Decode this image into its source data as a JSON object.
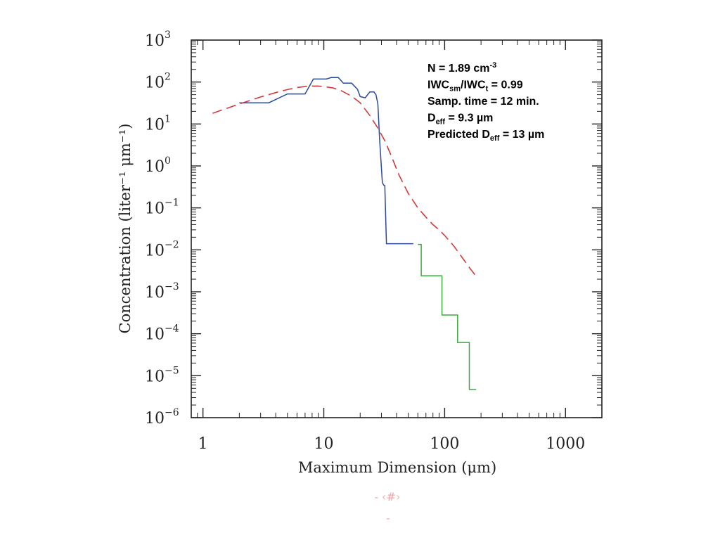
{
  "chart_data": {
    "type": "line",
    "xscale": "log",
    "yscale": "log",
    "xlim": [
      0.8,
      2000
    ],
    "ylim": [
      1e-06,
      1000
    ],
    "grid": false,
    "xlabel": "Maximum Dimension (μm)",
    "ylabel": "Concentration (liter⁻¹ μm⁻¹)",
    "x_ticks": [
      {
        "value": 1,
        "label": "1"
      },
      {
        "value": 10,
        "label": "10"
      },
      {
        "value": 100,
        "label": "100"
      },
      {
        "value": 1000,
        "label": "1000"
      }
    ],
    "y_ticks": [
      {
        "value": 1e-06,
        "base": "10",
        "exp": "−6"
      },
      {
        "value": 1e-05,
        "base": "10",
        "exp": "−5"
      },
      {
        "value": 0.0001,
        "base": "10",
        "exp": "−4"
      },
      {
        "value": 0.001,
        "base": "10",
        "exp": "−3"
      },
      {
        "value": 0.01,
        "base": "10",
        "exp": "−2"
      },
      {
        "value": 0.1,
        "base": "10",
        "exp": "−1"
      },
      {
        "value": 1,
        "base": "10",
        "exp": "0"
      },
      {
        "value": 10,
        "base": "10",
        "exp": "1"
      },
      {
        "value": 100,
        "base": "10",
        "exp": "2"
      },
      {
        "value": 1000,
        "base": "10",
        "exp": "3"
      }
    ],
    "series": [
      {
        "color": "#2a4aa0",
        "style": "solid",
        "points": [
          [
            2,
            32
          ],
          [
            3.5,
            32
          ],
          [
            5,
            52
          ],
          [
            7,
            52
          ],
          [
            8.2,
            118
          ],
          [
            10.5,
            118
          ],
          [
            11.5,
            128
          ],
          [
            13.2,
            128
          ],
          [
            14.5,
            94
          ],
          [
            17,
            94
          ],
          [
            19,
            67
          ],
          [
            20,
            45
          ],
          [
            22,
            42
          ],
          [
            24,
            58
          ],
          [
            26,
            58
          ],
          [
            27,
            50
          ],
          [
            28,
            30
          ],
          [
            29,
            4
          ],
          [
            30.5,
            0.4
          ],
          [
            31.3,
            0.35
          ],
          [
            32,
            0.34
          ],
          [
            33,
            0.014
          ],
          [
            55,
            0.014
          ]
        ]
      },
      {
        "color": "#3aaa3a",
        "style": "solid",
        "points": [
          [
            60,
            0.0135
          ],
          [
            64,
            0.0135
          ],
          [
            64,
            0.0024
          ],
          [
            95,
            0.0024
          ],
          [
            95,
            0.00028
          ],
          [
            128,
            0.00028
          ],
          [
            128,
            6.2e-05
          ],
          [
            160,
            6.2e-05
          ],
          [
            160,
            4.7e-06
          ],
          [
            182,
            4.7e-06
          ]
        ]
      },
      {
        "color": "#d23a3a",
        "style": "dashed",
        "points": [
          [
            1.2,
            18
          ],
          [
            2,
            30
          ],
          [
            3,
            44
          ],
          [
            4,
            56
          ],
          [
            5,
            66
          ],
          [
            6,
            74
          ],
          [
            7,
            78
          ],
          [
            8,
            80
          ],
          [
            9,
            80
          ],
          [
            10,
            78
          ],
          [
            12,
            72
          ],
          [
            14,
            62
          ],
          [
            17,
            46
          ],
          [
            20,
            32
          ],
          [
            24,
            16
          ],
          [
            28,
            8
          ],
          [
            32,
            4
          ],
          [
            36,
            1.8
          ],
          [
            42,
            0.6
          ],
          [
            50,
            0.22
          ],
          [
            60,
            0.1
          ],
          [
            70,
            0.06
          ],
          [
            80,
            0.04
          ],
          [
            90,
            0.03
          ],
          [
            100,
            0.022
          ],
          [
            120,
            0.012
          ],
          [
            140,
            0.0065
          ],
          [
            160,
            0.0038
          ],
          [
            185,
            0.0022
          ]
        ]
      }
    ],
    "annotations": [
      {
        "parts": [
          [
            "N = 1.89 cm",
            "n"
          ],
          [
            "-3",
            "sup"
          ]
        ]
      },
      {
        "parts": [
          [
            "IWC",
            "n"
          ],
          [
            "sm",
            "sub"
          ],
          [
            "/IWC",
            "n"
          ],
          [
            "t",
            "sub"
          ],
          [
            " = 0.99",
            "n"
          ]
        ]
      },
      {
        "parts": [
          [
            "Samp. time = 12 min.",
            "n"
          ]
        ]
      },
      {
        "parts": [
          [
            "D",
            "n"
          ],
          [
            "eff",
            "sub"
          ],
          [
            " = 9.3 µm",
            "n"
          ]
        ]
      },
      {
        "parts": [
          [
            "Predicted D",
            "n"
          ],
          [
            "eff",
            "sub"
          ],
          [
            " = 13 µm",
            "n"
          ]
        ]
      }
    ]
  },
  "footer": {
    "slide_number": "- ‹#›",
    "dash": "-"
  }
}
